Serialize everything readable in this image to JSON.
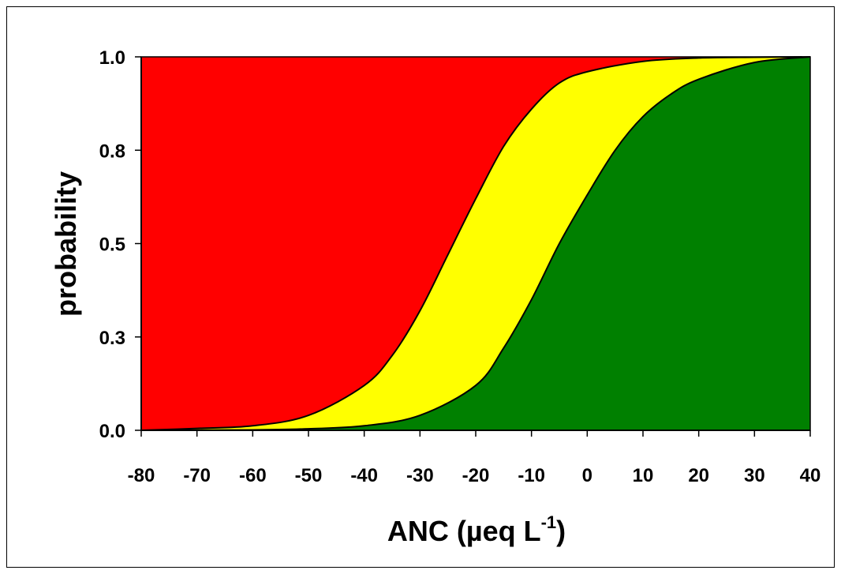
{
  "chart_data": {
    "type": "area",
    "xlabel": "ANC (µeq L",
    "xlabel_sup": "-1",
    "xlabel_close": ")",
    "ylabel": "probability",
    "xlim": [
      -80,
      40
    ],
    "ylim": [
      0.0,
      1.0
    ],
    "x_ticks": [
      -80,
      -70,
      -60,
      -50,
      -40,
      -30,
      -20,
      -10,
      0,
      10,
      20,
      30,
      40
    ],
    "x_tick_labels": [
      "-80",
      "-70",
      "-60",
      "-50",
      "-40",
      "-30",
      "-20",
      "-10",
      "0",
      "10",
      "20",
      "30",
      "40"
    ],
    "y_ticks": [
      0.0,
      0.25,
      0.5,
      0.75,
      1.0
    ],
    "y_tick_labels": [
      "0.0",
      "0.3",
      "0.5",
      "0.8",
      "1.0"
    ],
    "grid": false,
    "legend": "none",
    "regions_colors": {
      "top": "#ff0000",
      "middle": "#ffff00",
      "bottom": "#008000"
    },
    "series": [
      {
        "x": [
          -80,
          -70,
          -60,
          -50,
          -40,
          -35,
          -30,
          -25,
          -20,
          -15,
          -10,
          -5,
          0,
          10,
          20,
          30,
          40
        ],
        "values": [
          0.0,
          0.005,
          0.012,
          0.04,
          0.12,
          0.2,
          0.32,
          0.47,
          0.62,
          0.76,
          0.86,
          0.93,
          0.96,
          0.988,
          0.997,
          0.999,
          1.0
        ]
      },
      {
        "x": [
          -80,
          -60,
          -50,
          -40,
          -30,
          -20,
          -15,
          -10,
          -5,
          0,
          5,
          10,
          15,
          20,
          30,
          40
        ],
        "values": [
          0.0,
          0.001,
          0.004,
          0.012,
          0.04,
          0.12,
          0.22,
          0.35,
          0.5,
          0.63,
          0.75,
          0.84,
          0.9,
          0.94,
          0.985,
          1.0
        ]
      }
    ]
  }
}
